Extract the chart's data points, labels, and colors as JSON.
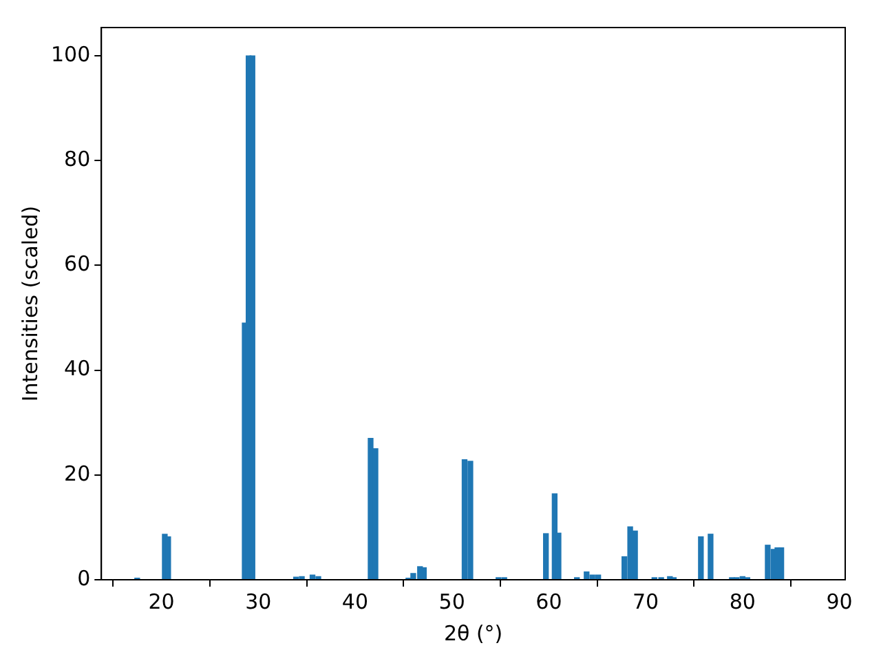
{
  "chart_data": {
    "type": "bar",
    "xlabel": "2θ (°)",
    "ylabel": "Intensities (scaled)",
    "x": [
      17.5,
      20.35,
      20.7,
      28.6,
      29.0,
      29.4,
      33.9,
      34.5,
      35.6,
      36.2,
      41.6,
      42.1,
      45.5,
      46.0,
      46.7,
      47.1,
      51.3,
      51.9,
      54.8,
      55.4,
      59.7,
      60.6,
      61.0,
      62.9,
      63.9,
      64.5,
      65.1,
      67.8,
      68.4,
      68.9,
      70.9,
      71.6,
      72.5,
      72.9,
      75.7,
      76.7,
      78.9,
      79.4,
      80.0,
      80.5,
      82.6,
      83.2,
      83.6,
      84.0
    ],
    "values": [
      0.3,
      8.7,
      8.2,
      49,
      100,
      100,
      0.5,
      0.6,
      0.9,
      0.6,
      27,
      25,
      0.3,
      1.2,
      2.5,
      2.3,
      22.9,
      22.6,
      0.4,
      0.4,
      8.8,
      16.4,
      8.9,
      0.4,
      1.5,
      0.9,
      0.9,
      4.4,
      10.1,
      9.3,
      0.4,
      0.4,
      0.6,
      0.4,
      8.2,
      8.7,
      0.4,
      0.4,
      0.6,
      0.4,
      6.6,
      5.8,
      6.1,
      6.1
    ],
    "color": "#1f77b4",
    "xlim": [
      13.8,
      90.6
    ],
    "xticks": [
      20,
      30,
      40,
      50,
      60,
      70,
      80,
      90
    ],
    "ylim": [
      0,
      105.4
    ],
    "yticks": [
      0,
      20,
      40,
      60,
      80,
      100
    ],
    "grid": false,
    "legend": false
  }
}
